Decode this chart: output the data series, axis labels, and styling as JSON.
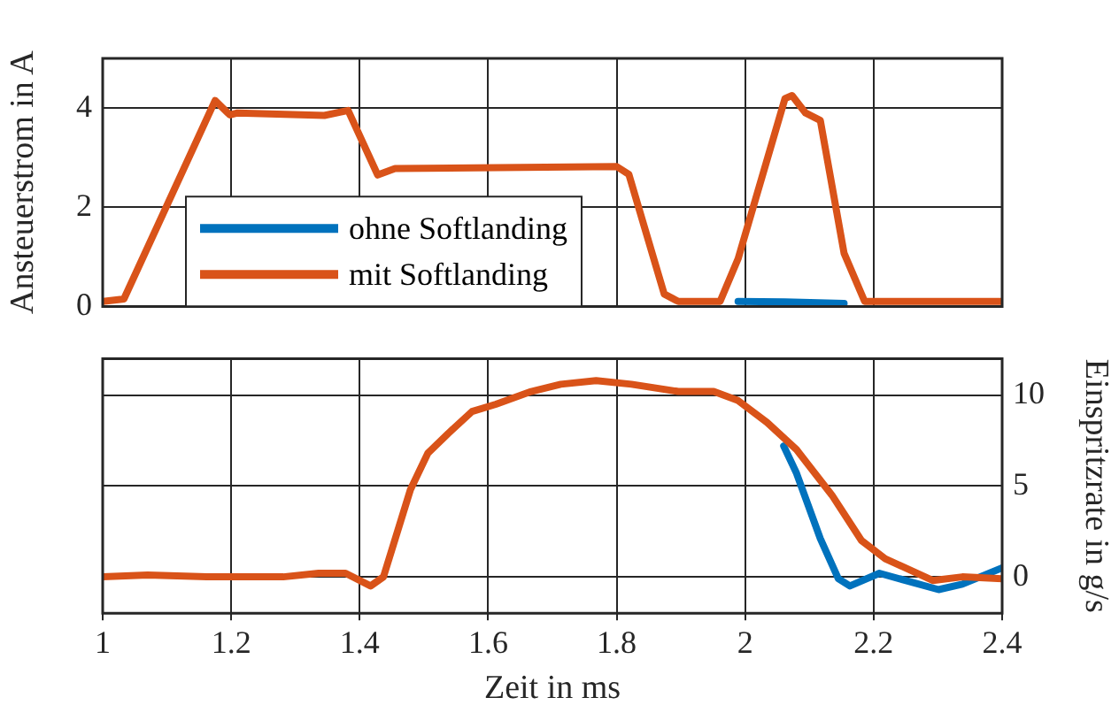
{
  "chart_data": [
    {
      "type": "line",
      "ylabel": "Ansteuerstrom in A",
      "xlim": [
        1,
        2.4
      ],
      "xticks": [
        1,
        1.2,
        1.4,
        1.6,
        1.8,
        2,
        2.2,
        2.4
      ],
      "ylim": [
        0,
        5
      ],
      "yticks": [
        0,
        2,
        4
      ],
      "tick_labels": "y",
      "grid": true,
      "legend": "left",
      "series": [
        {
          "name": "ohne Softlanding",
          "color": "#0072bd",
          "x": [
            1.989,
            2.062,
            2.154
          ],
          "values": [
            0.1,
            0.09,
            0.06
          ]
        },
        {
          "name": "mit Softlanding",
          "color": "#d95319",
          "x": [
            1,
            1.033,
            1.175,
            1.198,
            1.21,
            1.345,
            1.382,
            1.428,
            1.455,
            1.8,
            1.819,
            1.874,
            1.896,
            1.961,
            1.989,
            2.062,
            2.073,
            2.094,
            2.117,
            2.154,
            2.186,
            2.4
          ],
          "values": [
            0.1,
            0.15,
            4.15,
            3.86,
            3.9,
            3.85,
            3.95,
            2.65,
            2.78,
            2.82,
            2.66,
            0.25,
            0.1,
            0.1,
            0.96,
            4.19,
            4.25,
            3.9,
            3.75,
            1.07,
            0.1,
            0.1
          ]
        }
      ]
    },
    {
      "type": "line",
      "xlabel": "Zeit in ms",
      "ylabel": "Einspritzrate in g/s",
      "xlim": [
        1,
        2.4
      ],
      "xticks": [
        1,
        1.2,
        1.4,
        1.6,
        1.8,
        2,
        2.2,
        2.4
      ],
      "ylim": [
        -2,
        12
      ],
      "yticks": [
        0,
        5,
        10
      ],
      "grid": true,
      "series": [
        {
          "color": "#0072bd",
          "x": [
            2.06,
            2.08,
            2.117,
            2.145,
            2.163,
            2.209,
            2.301,
            2.338,
            2.4
          ],
          "values": [
            7.2,
            5.7,
            2.1,
            -0.1,
            -0.5,
            0.2,
            -0.7,
            -0.4,
            0.5
          ]
        },
        {
          "color": "#d95319",
          "x": [
            1,
            1.07,
            1.162,
            1.281,
            1.336,
            1.378,
            1.417,
            1.437,
            1.479,
            1.506,
            1.538,
            1.575,
            1.612,
            1.667,
            1.713,
            1.768,
            1.823,
            1.896,
            1.951,
            1.989,
            2.034,
            2.08,
            2.135,
            2.181,
            2.218,
            2.292,
            2.338,
            2.4
          ],
          "values": [
            0,
            0.1,
            0,
            0,
            0.2,
            0.2,
            -0.5,
            0,
            4.8,
            6.8,
            7.9,
            9.1,
            9.5,
            10.2,
            10.6,
            10.8,
            10.6,
            10.2,
            10.2,
            9.7,
            8.5,
            7,
            4.5,
            2,
            1,
            -0.2,
            0,
            -0.1
          ]
        }
      ]
    }
  ]
}
